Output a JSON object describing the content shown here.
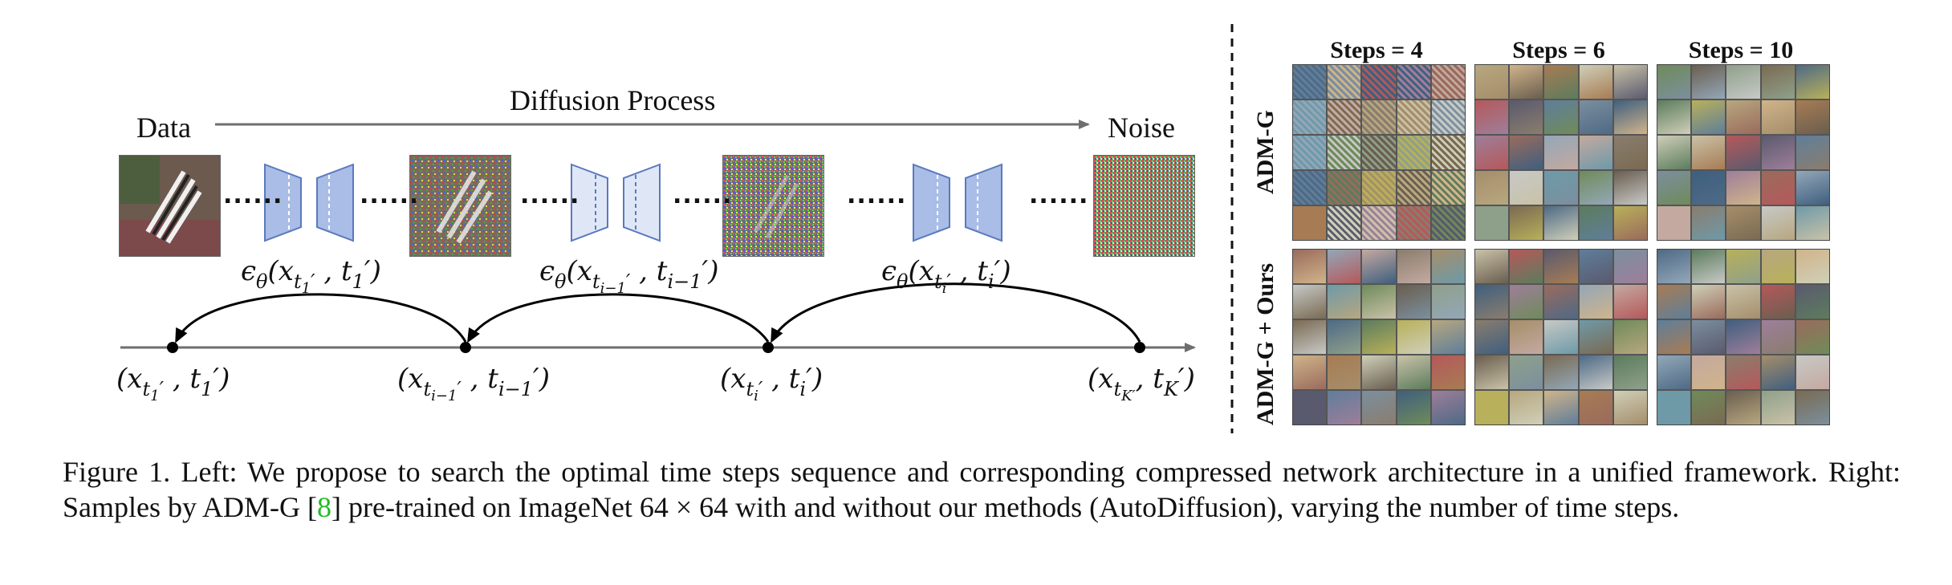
{
  "left": {
    "data_label": "Data",
    "noise_label": "Noise",
    "process_label": "Diffusion Process",
    "dots": "......",
    "model_labels": [
      {
        "base": "ϵ",
        "sub": "θ",
        "arg": "(x",
        "arg_sub": "t",
        "arg_subsub": "1",
        "arg_prime": "′",
        "rest": " , t",
        "rest_sub": "1",
        "rest_end": "′)"
      },
      {
        "base": "ϵ",
        "sub": "θ",
        "arg": "(x",
        "arg_sub": "t",
        "arg_subsub": "i−1",
        "arg_prime": "′",
        "rest": " , t",
        "rest_sub": "i−1",
        "rest_end": "′)"
      },
      {
        "base": "ϵ",
        "sub": "θ",
        "arg": "(x",
        "arg_sub": "t",
        "arg_subsub": "i",
        "arg_prime": "′",
        "rest": " , t",
        "rest_sub": "i",
        "rest_end": "′)"
      }
    ],
    "timeline_labels": [
      {
        "arg": "(x",
        "arg_sub": "t",
        "arg_subsub": "1",
        "arg_prime": "′",
        "rest": " , t",
        "rest_sub": "1",
        "rest_end": "′)"
      },
      {
        "arg": "(x",
        "arg_sub": "t",
        "arg_subsub": "i−1",
        "arg_prime": "′",
        "rest": " , t",
        "rest_sub": "i−1",
        "rest_end": "′)"
      },
      {
        "arg": "(x",
        "arg_sub": "t",
        "arg_subsub": "i",
        "arg_prime": "′",
        "rest": " , t",
        "rest_sub": "i",
        "rest_end": "′)"
      },
      {
        "arg": "(x",
        "arg_sub": "t",
        "arg_subsub": "K′",
        "arg_prime": "",
        "rest": ", t",
        "rest_sub": "K",
        "rest_end": "′)"
      }
    ]
  },
  "right": {
    "columns": [
      "Steps = 4",
      "Steps = 6",
      "Steps = 10"
    ],
    "rows": [
      "ADM-G",
      "ADM-G + Ours"
    ]
  },
  "caption": {
    "part1": "Figure 1. Left: We propose to search the optimal time steps sequence and corresponding compressed network architecture in a unified framework. Right: Samples by ADM-G [",
    "cite": "8",
    "part2": "] pre-trained on ImageNet 64 × 64 with and without our methods (AutoDiffusion), varying the number of time steps."
  }
}
